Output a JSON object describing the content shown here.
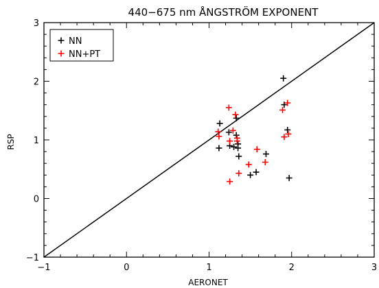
{
  "chart_data": {
    "type": "scatter",
    "title": "440−675 nm ÅNGSTRÖM EXPONENT",
    "xlabel": "AERONET",
    "ylabel": "RSP",
    "xlim": [
      -1,
      3
    ],
    "ylim": [
      -1,
      3
    ],
    "x_ticks": [
      "−1",
      "0",
      "1",
      "2",
      "3"
    ],
    "y_ticks": [
      "−1",
      "0",
      "1",
      "2",
      "3"
    ],
    "grid": false,
    "legend_position": "top-left",
    "reference_line": "1:1",
    "series": [
      {
        "name": "NN",
        "color": "#000000",
        "marker": "plus",
        "points": [
          [
            1.12,
            0.86
          ],
          [
            1.13,
            1.28
          ],
          [
            1.24,
            1.13
          ],
          [
            1.25,
            0.9
          ],
          [
            1.3,
            0.88
          ],
          [
            1.33,
            1.37
          ],
          [
            1.33,
            1.08
          ],
          [
            1.35,
            0.93
          ],
          [
            1.35,
            0.86
          ],
          [
            1.36,
            0.72
          ],
          [
            1.5,
            0.4
          ],
          [
            1.57,
            0.45
          ],
          [
            1.69,
            0.76
          ],
          [
            1.9,
            2.05
          ],
          [
            1.91,
            1.6
          ],
          [
            1.95,
            1.17
          ],
          [
            1.97,
            0.35
          ]
        ]
      },
      {
        "name": "NN+PT",
        "color": "#ff0000",
        "marker": "plus",
        "points": [
          [
            1.11,
            1.14
          ],
          [
            1.12,
            1.06
          ],
          [
            1.24,
            1.55
          ],
          [
            1.25,
            0.98
          ],
          [
            1.25,
            0.29
          ],
          [
            1.29,
            1.16
          ],
          [
            1.32,
            1.43
          ],
          [
            1.34,
            1.03
          ],
          [
            1.34,
            0.98
          ],
          [
            1.36,
            0.43
          ],
          [
            1.48,
            0.58
          ],
          [
            1.58,
            0.84
          ],
          [
            1.68,
            0.62
          ],
          [
            1.89,
            1.51
          ],
          [
            1.91,
            1.05
          ],
          [
            1.95,
            1.63
          ],
          [
            1.96,
            1.1
          ]
        ]
      }
    ]
  }
}
